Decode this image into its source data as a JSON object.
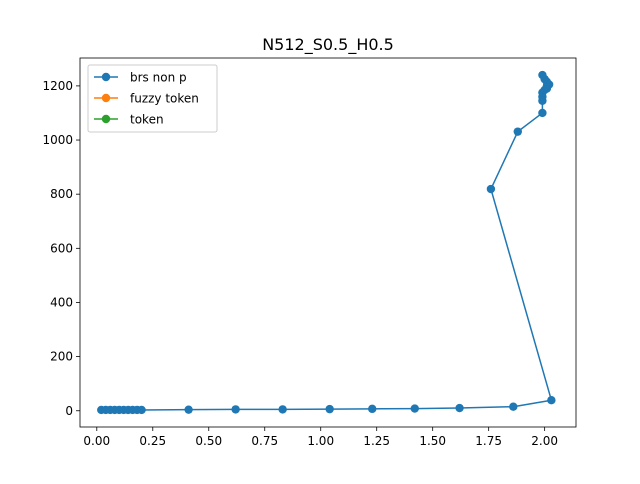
{
  "chart_data": {
    "type": "line",
    "title": "N512_S0.5_H0.5",
    "xlabel": "",
    "ylabel": "",
    "xlim": [
      -0.075,
      2.14
    ],
    "ylim": [
      -60,
      1303
    ],
    "xticks": [
      0.0,
      0.25,
      0.5,
      0.75,
      1.0,
      1.25,
      1.5,
      1.75,
      2.0
    ],
    "xtick_labels": [
      "0.00",
      "0.25",
      "0.50",
      "0.75",
      "1.00",
      "1.25",
      "1.50",
      "1.75",
      "2.00"
    ],
    "yticks": [
      0,
      200,
      400,
      600,
      800,
      1000,
      1200
    ],
    "ytick_labels": [
      "0",
      "200",
      "400",
      "600",
      "800",
      "1000",
      "1200"
    ],
    "grid": false,
    "legend_position": "upper-left",
    "series": [
      {
        "name": "brs non p",
        "color": "#1f77b4",
        "x": [
          0.02,
          0.04,
          0.06,
          0.08,
          0.1,
          0.12,
          0.14,
          0.16,
          0.18,
          0.2,
          0.41,
          0.62,
          0.83,
          1.04,
          1.23,
          1.42,
          1.62,
          1.86,
          2.03,
          1.76,
          1.88,
          1.99,
          1.99,
          1.99,
          1.99,
          2.0,
          2.01,
          2.01,
          2.02,
          2.01,
          2.0,
          1.99
        ],
        "y": [
          3,
          3,
          3,
          3,
          3,
          3,
          3,
          3,
          3,
          3,
          4,
          5,
          5,
          6,
          7,
          8,
          10,
          15,
          39,
          819,
          1031,
          1100,
          1145,
          1160,
          1175,
          1185,
          1190,
          1200,
          1205,
          1215,
          1225,
          1240
        ]
      },
      {
        "name": "fuzzy token",
        "color": "#ff7f0e",
        "x": [],
        "y": []
      },
      {
        "name": "token",
        "color": "#2ca02c",
        "x": [],
        "y": []
      }
    ]
  }
}
